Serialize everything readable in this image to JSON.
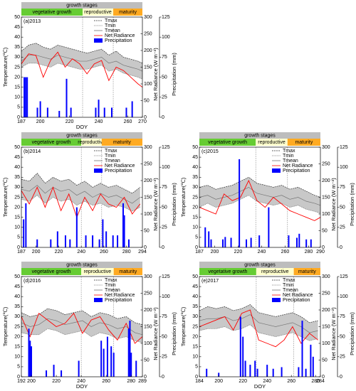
{
  "chart_data": [
    {
      "type": "line",
      "panel_label": "(a)2013",
      "header": "growth stages",
      "stages": [
        {
          "name": "vegetative growth",
          "start": 187,
          "end": 229,
          "color": "#66cc33"
        },
        {
          "name": "reproductive",
          "start": 229,
          "end": 250,
          "color": "#ffffcc"
        },
        {
          "name": "maturity",
          "start": 250,
          "end": 270,
          "color": "#ffaa22"
        }
      ],
      "x": [
        187,
        192,
        197,
        202,
        207,
        212,
        217,
        222,
        227,
        232,
        237,
        242,
        247,
        252,
        257,
        262,
        267,
        270
      ],
      "series": [
        {
          "name": "Tmax",
          "color": "#333333",
          "values": [
            33,
            36,
            37,
            35,
            34,
            36,
            35,
            34,
            33,
            32,
            33,
            34,
            31,
            33,
            30,
            29,
            28,
            27
          ]
        },
        {
          "name": "Tmin",
          "color": "#555555",
          "values": [
            25,
            27,
            27,
            26,
            25,
            27,
            26,
            25,
            24,
            24,
            25,
            26,
            23,
            24,
            22,
            21,
            20,
            19
          ]
        },
        {
          "name": "Tmean",
          "color": "#777777",
          "values": [
            28,
            31,
            31,
            30,
            29,
            31,
            30,
            29,
            28,
            28,
            29,
            30,
            27,
            28,
            26,
            25,
            24,
            23
          ]
        },
        {
          "name": "Net Radiance",
          "color": "#ff0000",
          "axis": "y2",
          "values": [
            160,
            190,
            185,
            120,
            170,
            195,
            150,
            175,
            160,
            130,
            160,
            170,
            110,
            150,
            140,
            120,
            100,
            90
          ]
        },
        {
          "name": "Precipitation",
          "color": "#0000ff",
          "axis": "y3",
          "x": [
            189,
            190,
            191,
            198,
            200,
            205,
            213,
            218,
            221,
            238,
            240,
            244,
            249,
            259,
            263
          ],
          "values": [
            50,
            50,
            50,
            12,
            20,
            12,
            8,
            48,
            12,
            12,
            22,
            12,
            12,
            12,
            20
          ]
        }
      ],
      "xlabel": "DOY",
      "ylabel": "Temperature(℃)",
      "y2label": "Net Radiance (W m⁻²)",
      "y3label": "Precipitation (mm)",
      "xlim": [
        187,
        270
      ],
      "xticks": [
        187,
        200,
        220,
        240,
        260,
        270
      ],
      "ylim": [
        0,
        50
      ],
      "yticks": [
        0,
        5,
        10,
        15,
        20,
        25,
        30,
        35,
        40,
        45,
        50
      ],
      "y2lim": [
        0,
        300
      ],
      "y2ticks": [
        0,
        50,
        100,
        150,
        200,
        250,
        300
      ],
      "y3lim": [
        0,
        125
      ],
      "y3ticks": [
        0,
        25,
        50,
        75,
        100,
        125
      ],
      "legend": "upper right",
      "grid": false
    },
    {
      "type": "line",
      "panel_label": "(b)2014",
      "header": "growth stages",
      "stages": [
        {
          "name": "vegetative growth",
          "start": 187,
          "end": 240,
          "color": "#66cc33"
        },
        {
          "name": "reproductive",
          "start": 240,
          "end": 258,
          "color": "#ffffcc"
        },
        {
          "name": "maturity",
          "start": 258,
          "end": 294,
          "color": "#ffaa22"
        }
      ],
      "x": [
        187,
        194,
        201,
        208,
        215,
        222,
        229,
        236,
        243,
        250,
        257,
        264,
        271,
        278,
        285,
        292
      ],
      "series": [
        {
          "name": "Tmax",
          "color": "#333333",
          "values": [
            34,
            33,
            37,
            32,
            35,
            33,
            34,
            31,
            33,
            30,
            32,
            30,
            31,
            29,
            27,
            30
          ]
        },
        {
          "name": "Tmin",
          "color": "#555555",
          "values": [
            24,
            23,
            26,
            22,
            25,
            23,
            24,
            21,
            23,
            21,
            22,
            20,
            21,
            20,
            18,
            20
          ]
        },
        {
          "name": "Tmean",
          "color": "#777777",
          "values": [
            29,
            28,
            31,
            27,
            30,
            28,
            29,
            26,
            28,
            25,
            27,
            25,
            26,
            24,
            22,
            25
          ]
        },
        {
          "name": "Net Radiance",
          "color": "#ff0000",
          "axis": "y2",
          "values": [
            170,
            130,
            180,
            120,
            180,
            110,
            160,
            90,
            150,
            110,
            160,
            130,
            120,
            150,
            100,
            130
          ]
        },
        {
          "name": "Precipitation",
          "color": "#0000ff",
          "axis": "y3",
          "x": [
            189,
            191,
            201,
            213,
            219,
            226,
            230,
            236,
            244,
            250,
            256,
            259,
            262,
            268,
            272,
            277,
            278,
            282
          ],
          "values": [
            35,
            55,
            10,
            10,
            20,
            15,
            10,
            50,
            15,
            15,
            10,
            35,
            20,
            15,
            15,
            55,
            40,
            10
          ]
        }
      ],
      "ylabel": "Temperature(℃)",
      "y2label": "Net Radiance (W m⁻²)",
      "y3label": "Precipitation (mm)",
      "xlim": [
        187,
        294
      ],
      "xticks": [
        187,
        200,
        220,
        240,
        260,
        280,
        294
      ],
      "ylim": [
        0,
        50
      ],
      "yticks": [
        0,
        5,
        10,
        15,
        20,
        25,
        30,
        35,
        40,
        45,
        50
      ],
      "y2lim": [
        0,
        300
      ],
      "y2ticks": [
        0,
        50,
        100,
        150,
        200,
        250,
        300
      ],
      "y3lim": [
        0,
        125
      ],
      "y3ticks": [
        0,
        25,
        50,
        75,
        100,
        125
      ],
      "legend": "upper right",
      "grid": false
    },
    {
      "type": "line",
      "panel_label": "(c)2015",
      "header": "growth stages",
      "stages": [
        {
          "name": "vegetative growth",
          "start": 187,
          "end": 235,
          "color": "#66cc33"
        },
        {
          "name": "reproductive",
          "start": 235,
          "end": 262,
          "color": "#ffffcc"
        },
        {
          "name": "maturity",
          "start": 262,
          "end": 290,
          "color": "#ffaa22"
        }
      ],
      "x": [
        187,
        194,
        201,
        208,
        215,
        222,
        229,
        236,
        243,
        250,
        257,
        264,
        271,
        278,
        285,
        290
      ],
      "series": [
        {
          "name": "Tmax",
          "color": "#333333",
          "values": [
            30,
            31,
            29,
            30,
            31,
            33,
            35,
            32,
            31,
            30,
            31,
            29,
            30,
            28,
            26,
            25
          ]
        },
        {
          "name": "Tmin",
          "color": "#555555",
          "values": [
            20,
            22,
            20,
            21,
            22,
            24,
            26,
            23,
            22,
            21,
            22,
            20,
            21,
            19,
            18,
            17
          ]
        },
        {
          "name": "Tmean",
          "color": "#777777",
          "values": [
            25,
            26,
            24,
            25,
            26,
            28,
            30,
            27,
            26,
            25,
            26,
            24,
            25,
            23,
            22,
            21
          ]
        },
        {
          "name": "Net Radiance",
          "color": "#ff0000",
          "axis": "y2",
          "values": [
            120,
            110,
            100,
            160,
            140,
            150,
            200,
            140,
            120,
            150,
            130,
            110,
            100,
            90,
            80,
            90
          ]
        },
        {
          "name": "Precipitation",
          "color": "#0000ff",
          "axis": "y3",
          "x": [
            192,
            195,
            197,
            207,
            209,
            214,
            221,
            227,
            231,
            238,
            246,
            263,
            270,
            272,
            278,
            282
          ],
          "values": [
            25,
            20,
            10,
            10,
            13,
            12,
            110,
            10,
            12,
            15,
            50,
            15,
            12,
            17,
            10,
            10
          ]
        }
      ],
      "ylabel": "Temperature(℃)",
      "y2label": "Net Radiance (W m⁻²)",
      "y3label": "Precipitation (mm)",
      "xlim": [
        187,
        290
      ],
      "xticks": [
        187,
        200,
        220,
        240,
        260,
        280,
        290
      ],
      "ylim": [
        0,
        50
      ],
      "yticks": [
        0,
        5,
        10,
        15,
        20,
        25,
        30,
        35,
        40,
        45,
        50
      ],
      "y2lim": [
        0,
        300
      ],
      "y2ticks": [
        0,
        50,
        100,
        150,
        200,
        250,
        300
      ],
      "y3lim": [
        0,
        125
      ],
      "y3ticks": [
        0,
        25,
        50,
        75,
        100,
        125
      ],
      "legend": "upper right",
      "grid": false
    },
    {
      "type": "line",
      "panel_label": "(d)2016",
      "header": "growth stages",
      "stages": [
        {
          "name": "vegetative growth",
          "start": 192,
          "end": 240,
          "color": "#66cc33"
        },
        {
          "name": "reproductive",
          "start": 240,
          "end": 266,
          "color": "#ffffcc"
        },
        {
          "name": "maturity",
          "start": 266,
          "end": 289,
          "color": "#ffaa22"
        }
      ],
      "x": [
        192,
        199,
        206,
        213,
        220,
        227,
        234,
        241,
        248,
        255,
        262,
        269,
        276,
        283,
        289
      ],
      "series": [
        {
          "name": "Tmax",
          "color": "#333333",
          "values": [
            32,
            30,
            31,
            34,
            33,
            31,
            32,
            33,
            30,
            32,
            31,
            29,
            30,
            27,
            26
          ]
        },
        {
          "name": "Tmin",
          "color": "#555555",
          "values": [
            22,
            21,
            21,
            24,
            23,
            21,
            22,
            23,
            20,
            22,
            21,
            19,
            20,
            18,
            17
          ]
        },
        {
          "name": "Tmean",
          "color": "#777777",
          "values": [
            27,
            25,
            26,
            29,
            28,
            26,
            27,
            28,
            25,
            27,
            26,
            24,
            25,
            22,
            21
          ]
        },
        {
          "name": "Net Radiance",
          "color": "#ff0000",
          "axis": "y2",
          "values": [
            180,
            120,
            190,
            170,
            150,
            160,
            190,
            130,
            170,
            180,
            140,
            110,
            160,
            100,
            120
          ]
        },
        {
          "name": "Precipitation",
          "color": "#0000ff",
          "axis": "y3",
          "x": [
            198,
            199,
            200,
            212,
            218,
            224,
            238,
            256,
            258,
            261,
            264,
            266,
            278,
            279,
            280,
            284
          ],
          "values": [
            60,
            45,
            38,
            8,
            15,
            8,
            20,
            45,
            35,
            50,
            38,
            30,
            60,
            70,
            30,
            20
          ]
        }
      ],
      "xlabel": "DOY",
      "ylabel": "Temperature(℃)",
      "y2label": "Net Radiance (W m⁻²)",
      "y3label": "Precipitation (mm)",
      "xlim": [
        192,
        289
      ],
      "xticks": [
        192,
        200,
        220,
        240,
        260,
        280,
        289
      ],
      "ylim": [
        0,
        50
      ],
      "yticks": [
        0,
        5,
        10,
        15,
        20,
        25,
        30,
        35,
        40,
        45,
        50
      ],
      "y2lim": [
        0,
        300
      ],
      "y2ticks": [
        0,
        50,
        100,
        150,
        200,
        250,
        300
      ],
      "y3lim": [
        0,
        125
      ],
      "y3ticks": [
        0,
        25,
        50,
        75,
        100,
        125
      ],
      "legend": "upper right",
      "grid": false
    },
    {
      "type": "line",
      "panel_label": "(e)2017",
      "header": "growth stages",
      "stages": [
        {
          "name": "vegetative growth",
          "start": 184,
          "end": 231,
          "color": "#66cc33"
        },
        {
          "name": "reproductive",
          "start": 231,
          "end": 262,
          "color": "#ffffcc"
        },
        {
          "name": "maturity",
          "start": 262,
          "end": 284,
          "color": "#ffaa22"
        }
      ],
      "x": [
        184,
        191,
        198,
        205,
        212,
        219,
        226,
        233,
        240,
        247,
        254,
        261,
        268,
        275,
        282
      ],
      "series": [
        {
          "name": "Tmax",
          "color": "#333333",
          "values": [
            33,
            35,
            34,
            35,
            33,
            34,
            36,
            32,
            31,
            30,
            31,
            32,
            30,
            27,
            28
          ]
        },
        {
          "name": "Tmin",
          "color": "#555555",
          "values": [
            23,
            24,
            24,
            25,
            23,
            24,
            26,
            22,
            21,
            20,
            21,
            22,
            20,
            18,
            19
          ]
        },
        {
          "name": "Tmean",
          "color": "#777777",
          "values": [
            28,
            29,
            29,
            30,
            28,
            29,
            31,
            27,
            26,
            25,
            26,
            27,
            25,
            22,
            23
          ]
        },
        {
          "name": "Net Radiance",
          "color": "#ff0000",
          "axis": "y2",
          "values": [
            150,
            160,
            170,
            180,
            140,
            190,
            200,
            110,
            100,
            90,
            110,
            150,
            100,
            130,
            110
          ]
        },
        {
          "name": "Precipitation",
          "color": "#0000ff",
          "axis": "y3",
          "x": [
            190,
            200,
            218,
            220,
            222,
            226,
            230,
            232,
            240,
            245,
            252,
            266,
            269,
            272,
            276,
            278
          ],
          "values": [
            10,
            5,
            75,
            50,
            20,
            15,
            20,
            10,
            15,
            10,
            12,
            12,
            70,
            10,
            40,
            25
          ]
        }
      ],
      "xlabel": "DOY",
      "ylabel": "Temperature(℃)",
      "y2label": "Net Radiance (W m⁻²)",
      "y3label": "Precipitation (mm)",
      "xlim": [
        184,
        284
      ],
      "xticks": [
        184,
        200,
        220,
        240,
        260,
        280,
        284
      ],
      "ylim": [
        0,
        50
      ],
      "yticks": [
        0,
        5,
        10,
        15,
        20,
        25,
        30,
        35,
        40,
        45,
        50
      ],
      "y2lim": [
        0,
        300
      ],
      "y2ticks": [
        0,
        50,
        100,
        150,
        200,
        250,
        300
      ],
      "y3lim": [
        0,
        125
      ],
      "y3ticks": [
        0,
        25,
        50,
        75,
        100,
        125
      ],
      "legend": "upper right",
      "grid": false
    }
  ]
}
